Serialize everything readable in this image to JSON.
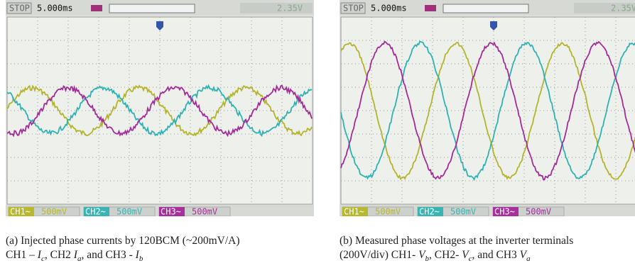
{
  "panels": [
    {
      "status": "STOP",
      "timebase": "5.000ms",
      "trigger_level": "2.35V",
      "channels": [
        "CH1~",
        "CH2~",
        "CH3~"
      ],
      "scales": [
        "500mV",
        "500mV",
        "500mV"
      ],
      "caption": {
        "line1": "(a)  Injected phase currents by 120BCM (~200mV/A)",
        "line2": [
          "CH1 – ",
          "I",
          "c",
          ", CH2 ",
          "I",
          "a",
          ", and CH3 - ",
          "I",
          "b"
        ]
      }
    },
    {
      "status": "STOP",
      "timebase": "5.000ms",
      "trigger_level": "2.35V",
      "channels": [
        "CH1~",
        "CH2~",
        "CH3~"
      ],
      "scales": [
        "500mV",
        "500mV",
        "500mV"
      ],
      "caption": {
        "line1": "(b)  Measured phase voltages at the inverter terminals",
        "line2": [
          "(200V/div) CH1- ",
          "V",
          "b",
          ", CH2- ",
          "V",
          "c",
          ", and CH3 ",
          "V",
          "a"
        ]
      }
    }
  ]
}
